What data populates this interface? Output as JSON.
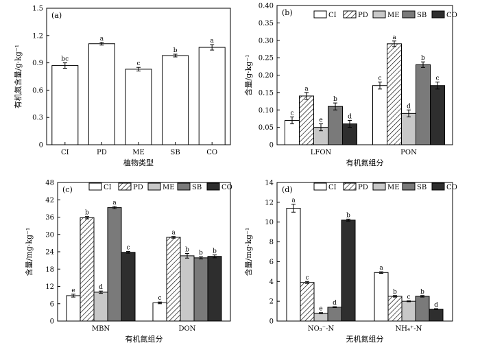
{
  "chart_data": [
    {
      "type": "bar",
      "panel": "(a)",
      "xlabel": "植物类型",
      "ylabel": "有机氮含量/g·kg⁻¹",
      "categories": [
        "CI",
        "PD",
        "ME",
        "SB",
        "CO"
      ],
      "values": [
        0.87,
        1.11,
        0.83,
        0.98,
        1.07
      ],
      "errors": [
        0.03,
        0.015,
        0.02,
        0.015,
        0.03
      ],
      "letters": [
        "bc",
        "a",
        "c",
        "b",
        "a"
      ],
      "ylim": [
        0,
        1.5
      ],
      "yticks": [
        0,
        0.3,
        0.6,
        0.9,
        1.2,
        1.5
      ],
      "ytick_labels": [
        "0",
        "0.3",
        "0.6",
        "0.9",
        "1.2",
        "1.5"
      ]
    },
    {
      "type": "bar",
      "panel": "(b)",
      "xlabel": "有机氮组分",
      "ylabel": "含量/g·kg⁻¹",
      "categories": [
        "LFON",
        "PON"
      ],
      "legend": [
        "CI",
        "PD",
        "ME",
        "SB",
        "CO"
      ],
      "legend_position": "top",
      "series": [
        {
          "name": "CI",
          "values": [
            0.07,
            0.17
          ],
          "errors": [
            0.01,
            0.01
          ],
          "letters": [
            "c",
            "c"
          ]
        },
        {
          "name": "PD",
          "values": [
            0.14,
            0.29
          ],
          "errors": [
            0.01,
            0.008
          ],
          "letters": [
            "a",
            "a"
          ]
        },
        {
          "name": "ME",
          "values": [
            0.05,
            0.09
          ],
          "errors": [
            0.01,
            0.01
          ],
          "letters": [
            "e",
            "d"
          ]
        },
        {
          "name": "SB",
          "values": [
            0.11,
            0.23
          ],
          "errors": [
            0.01,
            0.008
          ],
          "letters": [
            "b",
            "b"
          ]
        },
        {
          "name": "CO",
          "values": [
            0.06,
            0.17
          ],
          "errors": [
            0.01,
            0.01
          ],
          "letters": [
            "d",
            "c"
          ]
        }
      ],
      "ylim": [
        0,
        0.4
      ],
      "yticks": [
        0,
        0.05,
        0.1,
        0.15,
        0.2,
        0.25,
        0.3,
        0.35,
        0.4
      ],
      "ytick_labels": [
        "0",
        "0.05",
        "0.10",
        "0.15",
        "0.20",
        "0.25",
        "0.30",
        "0.35",
        "0.40"
      ]
    },
    {
      "type": "bar",
      "panel": "(c)",
      "xlabel": "有机氮组分",
      "ylabel": "含量/mg·kg⁻¹",
      "categories": [
        "MBN",
        "DON"
      ],
      "legend": [
        "CI",
        "PD",
        "ME",
        "SB",
        "CO"
      ],
      "legend_position": "top",
      "series": [
        {
          "name": "CI",
          "values": [
            8.8,
            6.3
          ],
          "errors": [
            0.5,
            0.3
          ],
          "letters": [
            "e",
            "c"
          ]
        },
        {
          "name": "PD",
          "values": [
            35.8,
            29.0
          ],
          "errors": [
            0.4,
            0.3
          ],
          "letters": [
            "b",
            "a"
          ]
        },
        {
          "name": "ME",
          "values": [
            10.0,
            22.6
          ],
          "errors": [
            0.4,
            0.8
          ],
          "letters": [
            "d",
            "b"
          ]
        },
        {
          "name": "SB",
          "values": [
            39.3,
            21.9
          ],
          "errors": [
            0.4,
            0.4
          ],
          "letters": [
            "a",
            "b"
          ]
        },
        {
          "name": "CO",
          "values": [
            23.8,
            22.4
          ],
          "errors": [
            0.3,
            0.5
          ],
          "letters": [
            "c",
            "b"
          ]
        }
      ],
      "ylim": [
        0,
        48
      ],
      "yticks": [
        0,
        6,
        12,
        18,
        24,
        30,
        36,
        42,
        48
      ],
      "ytick_labels": [
        "0",
        "6",
        "12",
        "18",
        "24",
        "30",
        "36",
        "42",
        "48"
      ]
    },
    {
      "type": "bar",
      "panel": "(d)",
      "xlabel": "无机氮组分",
      "ylabel": "含量/mg·kg⁻¹",
      "categories": [
        "NO₃⁻-N",
        "NH₄⁺-N"
      ],
      "legend": [
        "CI",
        "PD",
        "ME",
        "SB",
        "CO"
      ],
      "legend_position": "top",
      "series": [
        {
          "name": "CI",
          "values": [
            11.4,
            4.9
          ],
          "errors": [
            0.4,
            0.08
          ],
          "letters": [
            "a",
            "a"
          ]
        },
        {
          "name": "PD",
          "values": [
            3.9,
            2.5
          ],
          "errors": [
            0.1,
            0.08
          ],
          "letters": [
            "c",
            "b"
          ]
        },
        {
          "name": "ME",
          "values": [
            0.8,
            2.0
          ],
          "errors": [
            0.05,
            0.05
          ],
          "letters": [
            "e",
            "c"
          ]
        },
        {
          "name": "SB",
          "values": [
            1.4,
            2.5
          ],
          "errors": [
            0.05,
            0.08
          ],
          "letters": [
            "d",
            "b"
          ]
        },
        {
          "name": "CO",
          "values": [
            10.2,
            1.2
          ],
          "errors": [
            0.1,
            0.05
          ],
          "letters": [
            "b",
            "d"
          ]
        }
      ],
      "ylim": [
        0,
        14
      ],
      "yticks": [
        0,
        2,
        4,
        6,
        8,
        10,
        12,
        14
      ],
      "ytick_labels": [
        "0",
        "2",
        "4",
        "6",
        "8",
        "10",
        "12",
        "14"
      ]
    }
  ]
}
